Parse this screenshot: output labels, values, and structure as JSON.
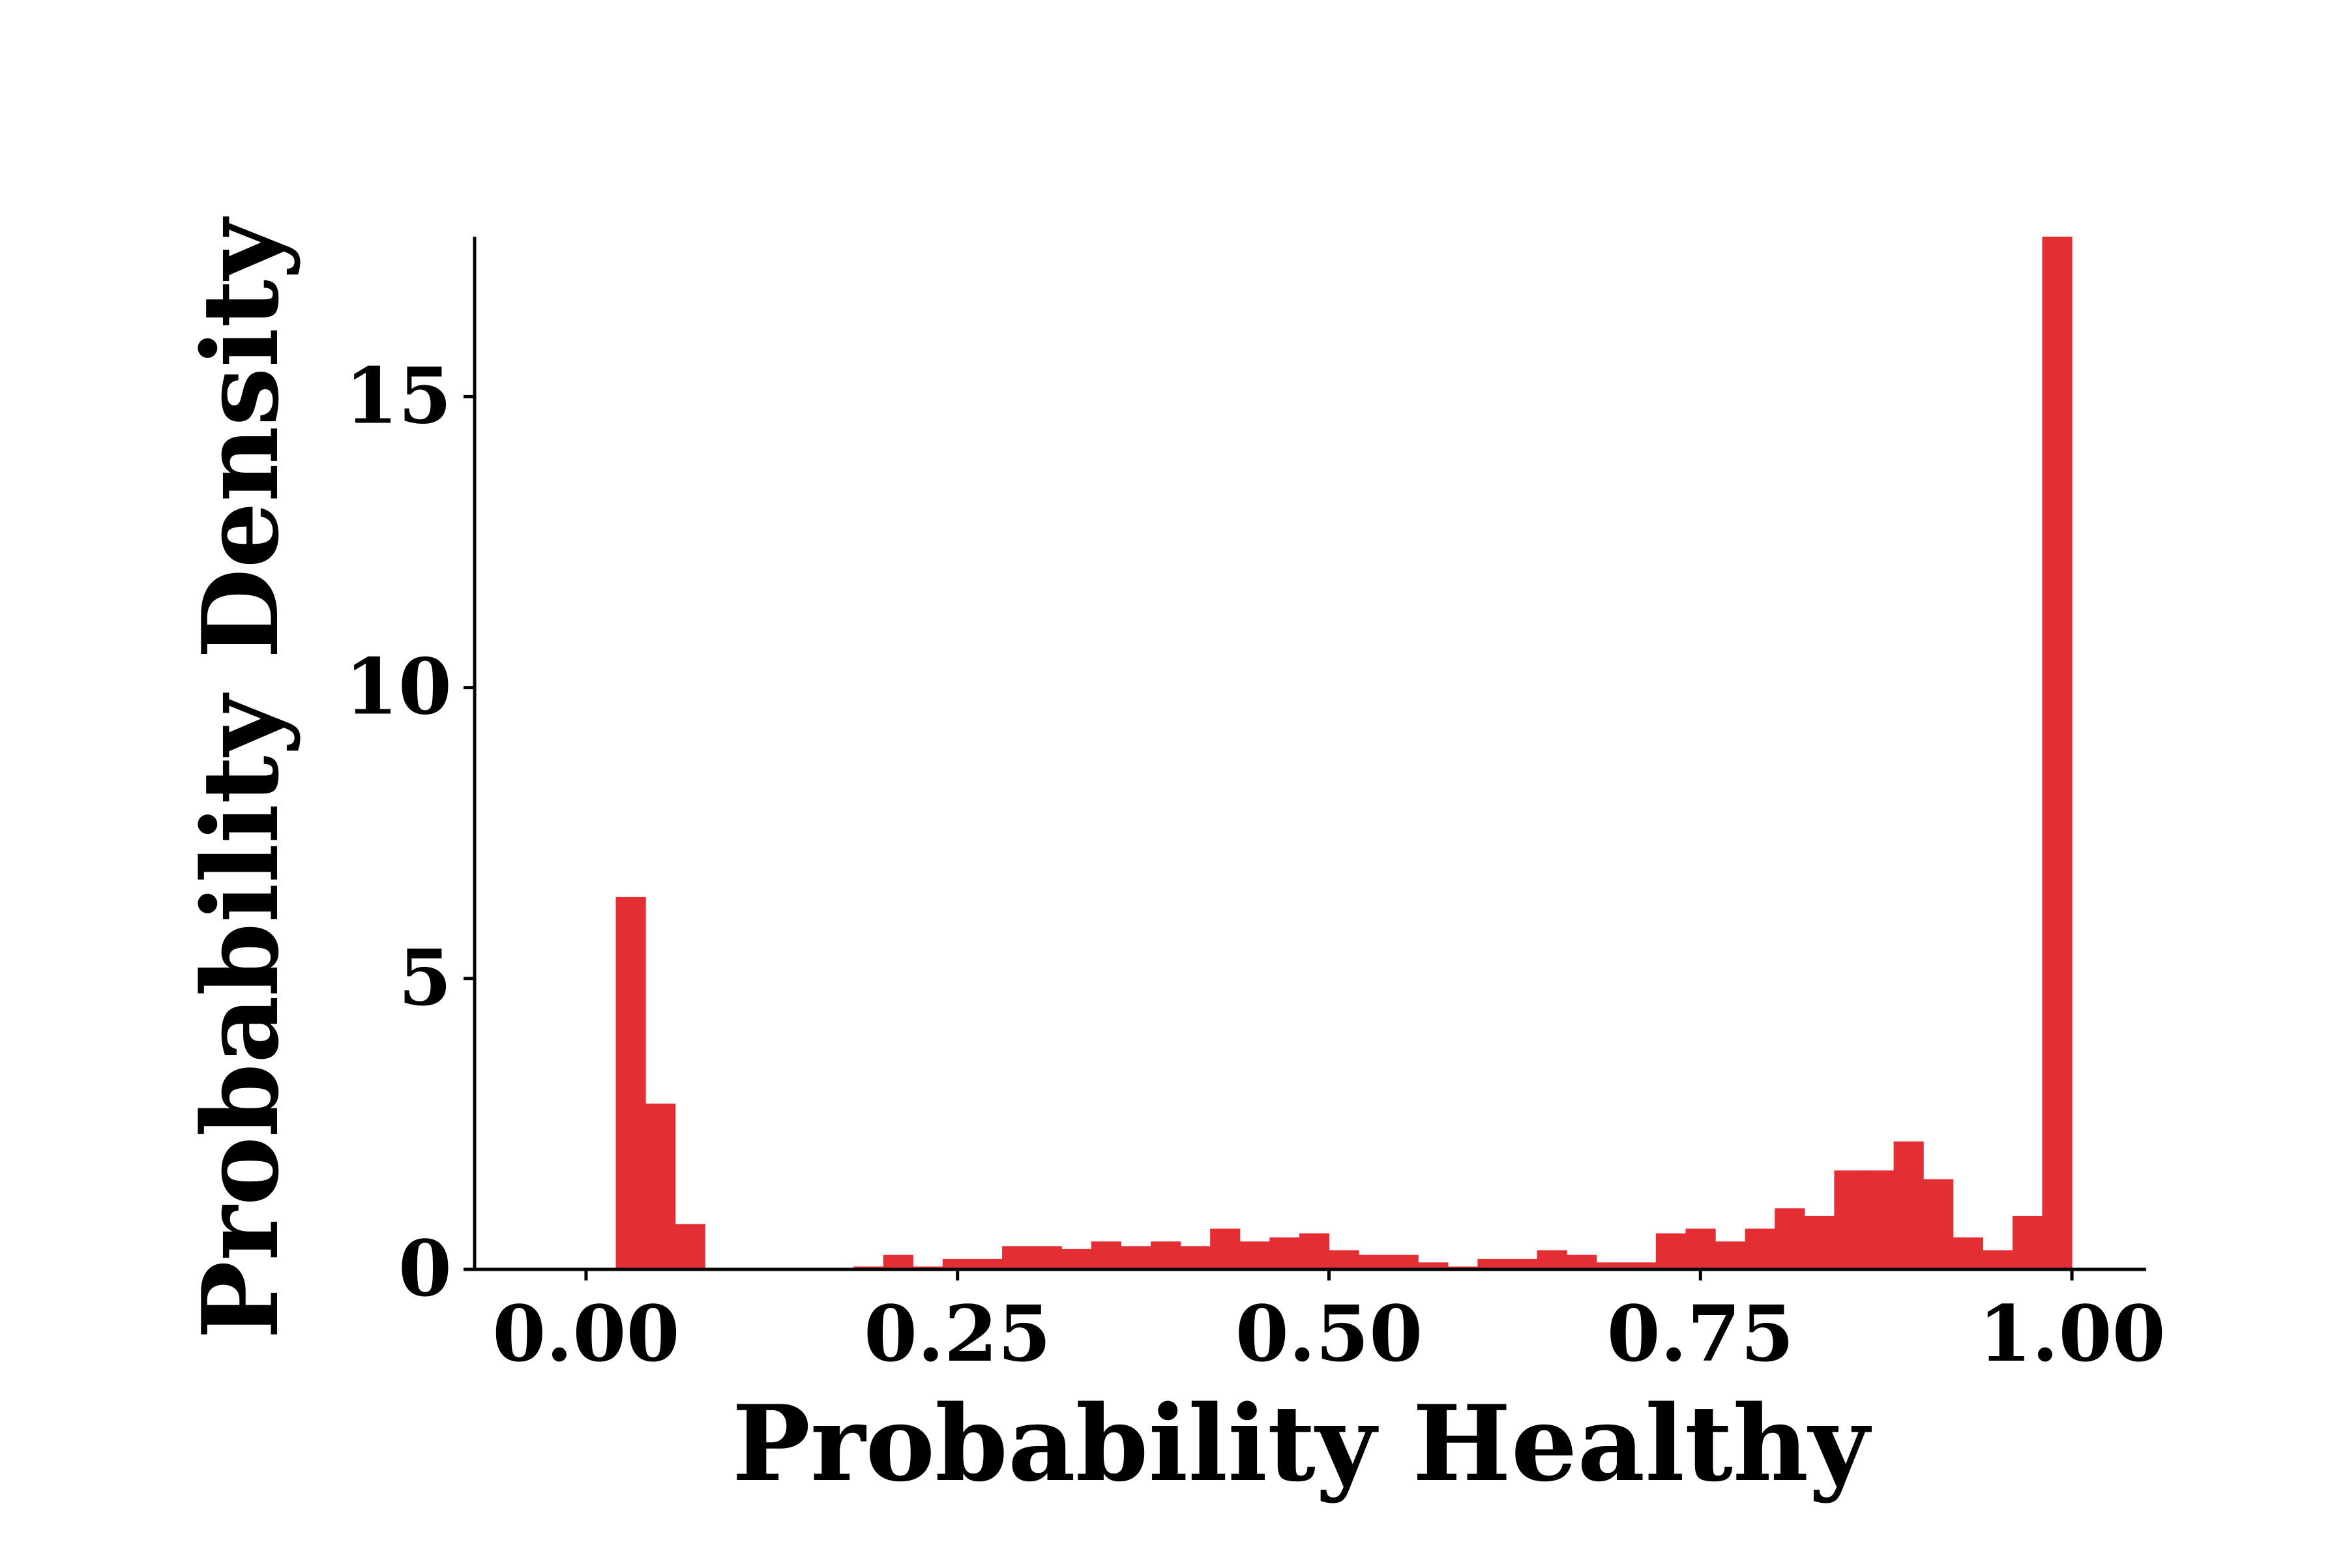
{
  "chart_data": {
    "type": "bar",
    "title": "",
    "xlabel": "Probability Healthy",
    "ylabel": "Probability Density",
    "xlim": [
      -0.075,
      1.05
    ],
    "ylim": [
      0,
      17.75
    ],
    "x_ticks": [
      0.0,
      0.25,
      0.5,
      0.75,
      1.0
    ],
    "x_tick_labels": [
      "0.00",
      "0.25",
      "0.50",
      "0.75",
      "1.00"
    ],
    "y_ticks": [
      0,
      5,
      10,
      15
    ],
    "y_tick_labels": [
      "0",
      "5",
      "10",
      "15"
    ],
    "bin_width": 0.02,
    "bin_starts": [
      0.0,
      0.02,
      0.04,
      0.06,
      0.08,
      0.1,
      0.12,
      0.14,
      0.16,
      0.18,
      0.2,
      0.22,
      0.24,
      0.26,
      0.28,
      0.3,
      0.32,
      0.34,
      0.36,
      0.38,
      0.4,
      0.42,
      0.44,
      0.46,
      0.48,
      0.5,
      0.52,
      0.54,
      0.56,
      0.58,
      0.6,
      0.62,
      0.64,
      0.66,
      0.68,
      0.7,
      0.72,
      0.74,
      0.76,
      0.78,
      0.8,
      0.82,
      0.84,
      0.86,
      0.88,
      0.9,
      0.92,
      0.94,
      0.96,
      0.98
    ],
    "values": [
      0.0,
      6.4,
      2.85,
      0.78,
      0.0,
      0.0,
      0.0,
      0.0,
      0.0,
      0.05,
      0.25,
      0.05,
      0.18,
      0.18,
      0.4,
      0.4,
      0.35,
      0.48,
      0.4,
      0.48,
      0.4,
      0.7,
      0.48,
      0.55,
      0.62,
      0.33,
      0.25,
      0.25,
      0.12,
      0.05,
      0.18,
      0.18,
      0.33,
      0.25,
      0.12,
      0.12,
      0.62,
      0.7,
      0.48,
      0.7,
      1.05,
      0.92,
      1.7,
      1.7,
      2.2,
      1.55,
      0.55,
      0.33,
      0.92,
      17.75
    ],
    "grid": false,
    "legend": "none",
    "bar_color": "#e32f34",
    "axis_color": "#000000"
  }
}
